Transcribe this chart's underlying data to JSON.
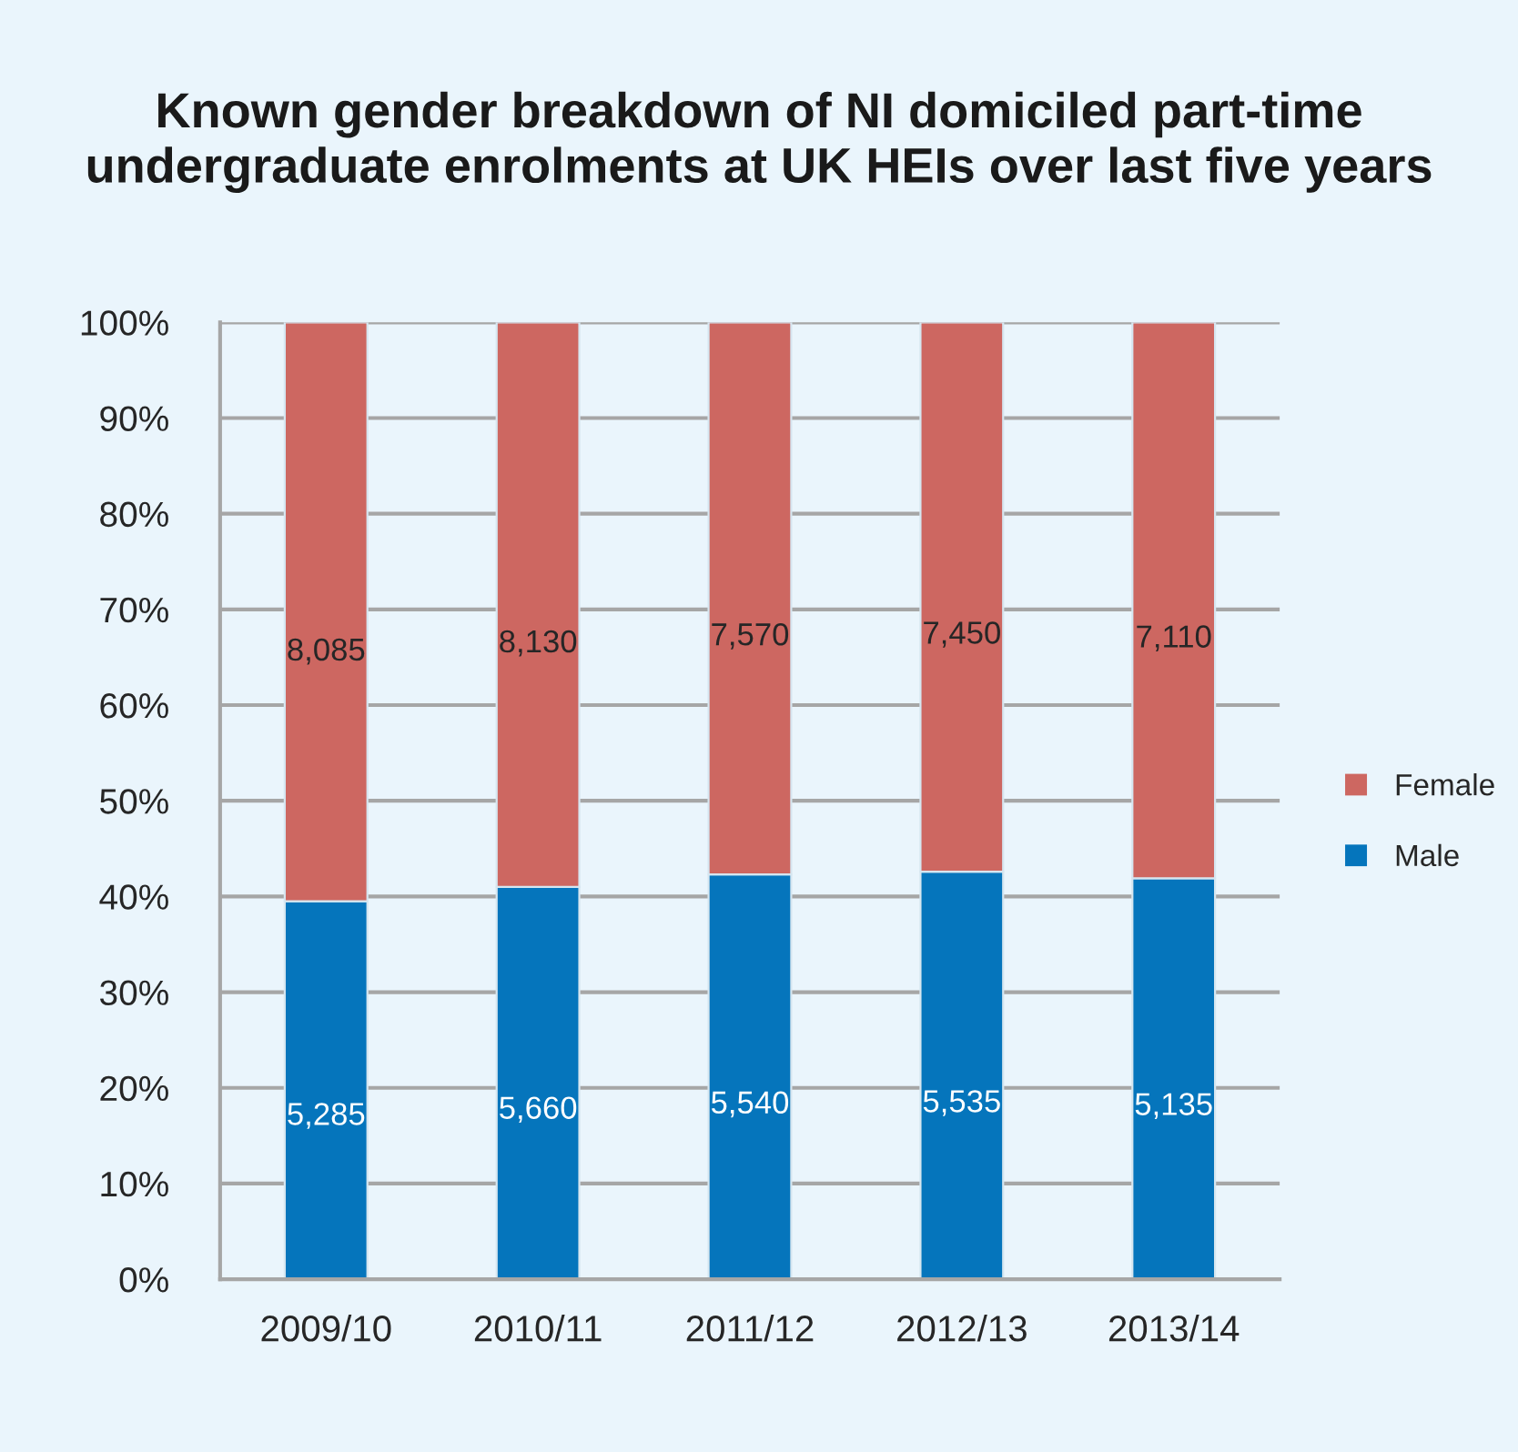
{
  "chart_data": {
    "type": "bar",
    "title": "Known gender breakdown of NI domiciled part-time\nundergraduate enrolments at UK HEIs over last five years",
    "categories": [
      "2009/10",
      "2010/11",
      "2011/12",
      "2012/13",
      "2013/14"
    ],
    "stacked": true,
    "series": [
      {
        "name": "Male",
        "color": "#0575bc",
        "values": [
          39.5,
          41.0,
          42.3,
          42.6,
          41.9
        ]
      },
      {
        "name": "Female",
        "color": "#cd6761",
        "values": [
          60.5,
          59.0,
          57.7,
          57.4,
          58.1
        ]
      }
    ],
    "annotations": [
      "5,285",
      "5,660",
      "5,540",
      "5,535",
      "5,135",
      "8,085",
      "8,130",
      "7,570",
      "7,450",
      "7,110"
    ],
    "ylim": [
      0,
      100
    ],
    "yticks": [
      {
        "value": 0,
        "label": "0%"
      },
      {
        "value": 10,
        "label": "10%"
      },
      {
        "value": 20,
        "label": "20%"
      },
      {
        "value": 30,
        "label": "30%"
      },
      {
        "value": 40,
        "label": "40%"
      },
      {
        "value": 50,
        "label": "50%"
      },
      {
        "value": 60,
        "label": "60%"
      },
      {
        "value": 70,
        "label": "70%"
      },
      {
        "value": 80,
        "label": "80%"
      },
      {
        "value": 90,
        "label": "90%"
      },
      {
        "value": 100,
        "label": "100%"
      }
    ],
    "grid": "y",
    "legend": "right"
  }
}
